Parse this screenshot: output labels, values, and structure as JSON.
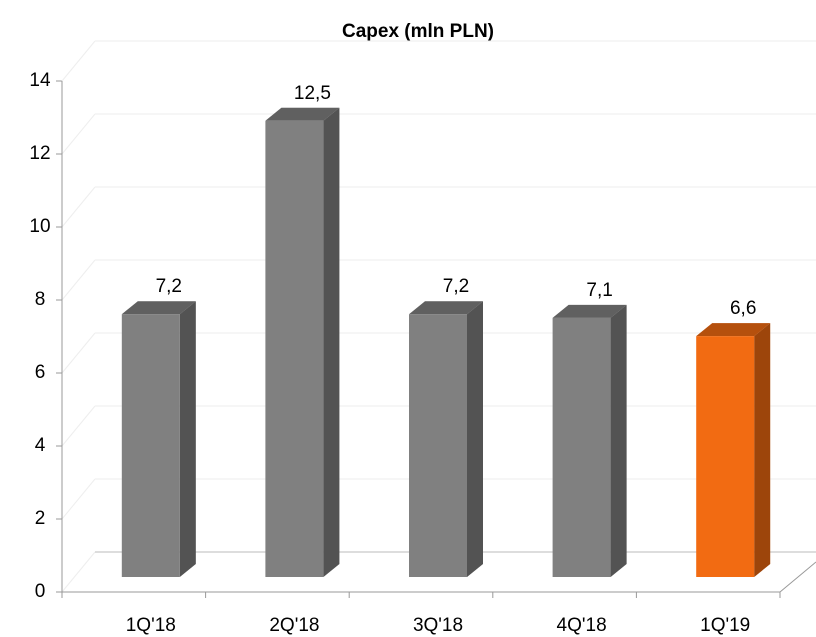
{
  "chart_data": {
    "type": "bar3d",
    "title": "Capex (mln PLN)",
    "categories": [
      "1Q'18",
      "2Q'18",
      "3Q'18",
      "4Q'18",
      "1Q'19"
    ],
    "values": [
      7.2,
      12.5,
      7.2,
      7.1,
      6.6
    ],
    "value_labels": [
      "7,2",
      "12,5",
      "7,2",
      "7,1",
      "6,6"
    ],
    "colors": [
      "#808080",
      "#808080",
      "#808080",
      "#808080",
      "#f26b12"
    ],
    "ylim": [
      0,
      14
    ],
    "yticks": [
      0,
      2,
      4,
      6,
      8,
      10,
      12,
      14
    ],
    "grid": true
  }
}
